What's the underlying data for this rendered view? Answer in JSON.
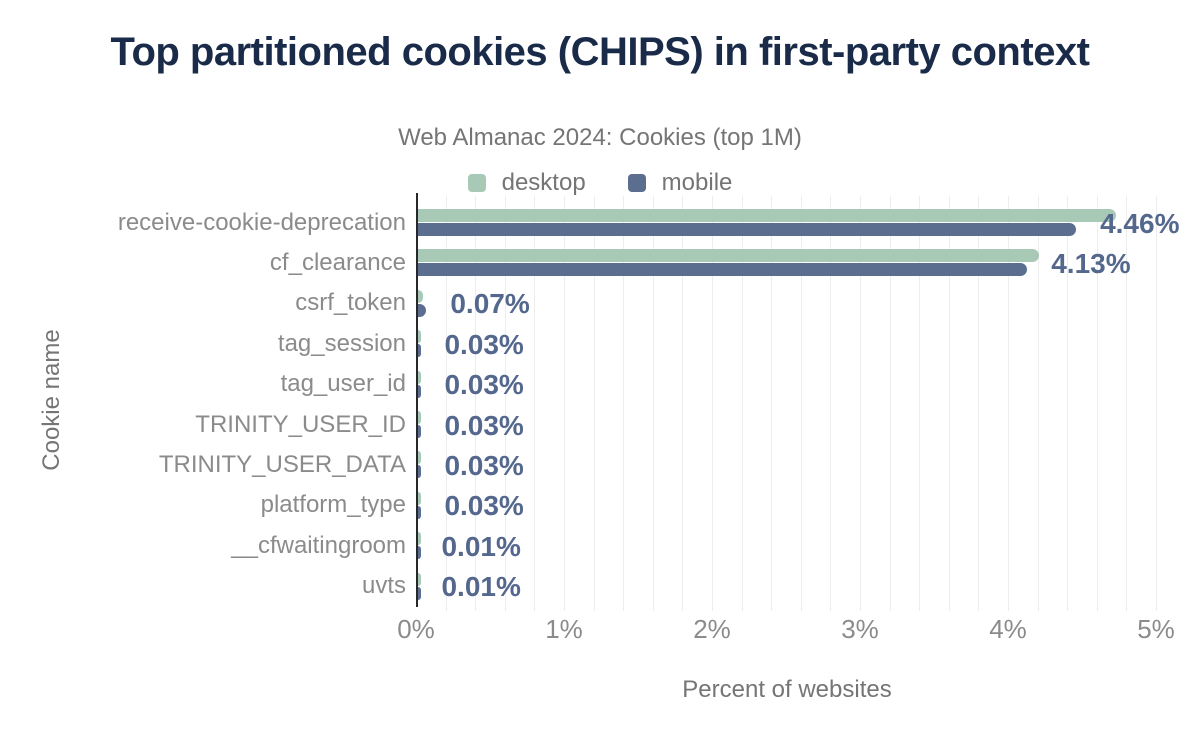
{
  "chart": {
    "title": "Top partitioned cookies (CHIPS) in first-party context",
    "subtitle": "Web Almanac 2024: Cookies (top 1M)",
    "xlabel": "Percent of websites",
    "ylabel": "Cookie name"
  },
  "chart_data": {
    "type": "bar",
    "orientation": "horizontal",
    "title": "Top partitioned cookies (CHIPS) in first-party context",
    "subtitle": "Web Almanac 2024: Cookies (top 1M)",
    "xlabel": "Percent of websites",
    "ylabel": "Cookie name",
    "categories": [
      "receive-cookie-deprecation",
      "cf_clearance",
      "csrf_token",
      "tag_session",
      "tag_user_id",
      "TRINITY_USER_ID",
      "TRINITY_USER_DATA",
      "platform_type",
      "__cfwaitingroom",
      "uvts"
    ],
    "series": [
      {
        "name": "desktop",
        "color": "#a9c9b7",
        "values": [
          4.73,
          4.21,
          0.05,
          0.03,
          0.03,
          0.03,
          0.03,
          0.03,
          0.01,
          0.01
        ]
      },
      {
        "name": "mobile",
        "color": "#5b6e90",
        "values": [
          4.46,
          4.13,
          0.07,
          0.03,
          0.03,
          0.03,
          0.03,
          0.03,
          0.01,
          0.01
        ]
      }
    ],
    "value_labels": [
      "4.46%",
      "4.13%",
      "0.07%",
      "0.03%",
      "0.03%",
      "0.03%",
      "0.03%",
      "0.03%",
      "0.01%",
      "0.01%"
    ],
    "x_ticks": [
      "0%",
      "1%",
      "2%",
      "3%",
      "4%",
      "5%"
    ],
    "xlim": [
      0,
      5
    ],
    "grid_minor_step": 0.2,
    "grid": true,
    "legend_position": "top"
  },
  "colors": {
    "title": "#1a2b49",
    "subtitle": "#757575",
    "axis_text": "#8b8b8b",
    "axis_title": "#757575",
    "value_label": "#54688e",
    "desktop": "#a9c9b7",
    "mobile": "#5b6e90",
    "axis_line": "#26282b",
    "gridline": "#ededed",
    "background": "#ffffff"
  }
}
